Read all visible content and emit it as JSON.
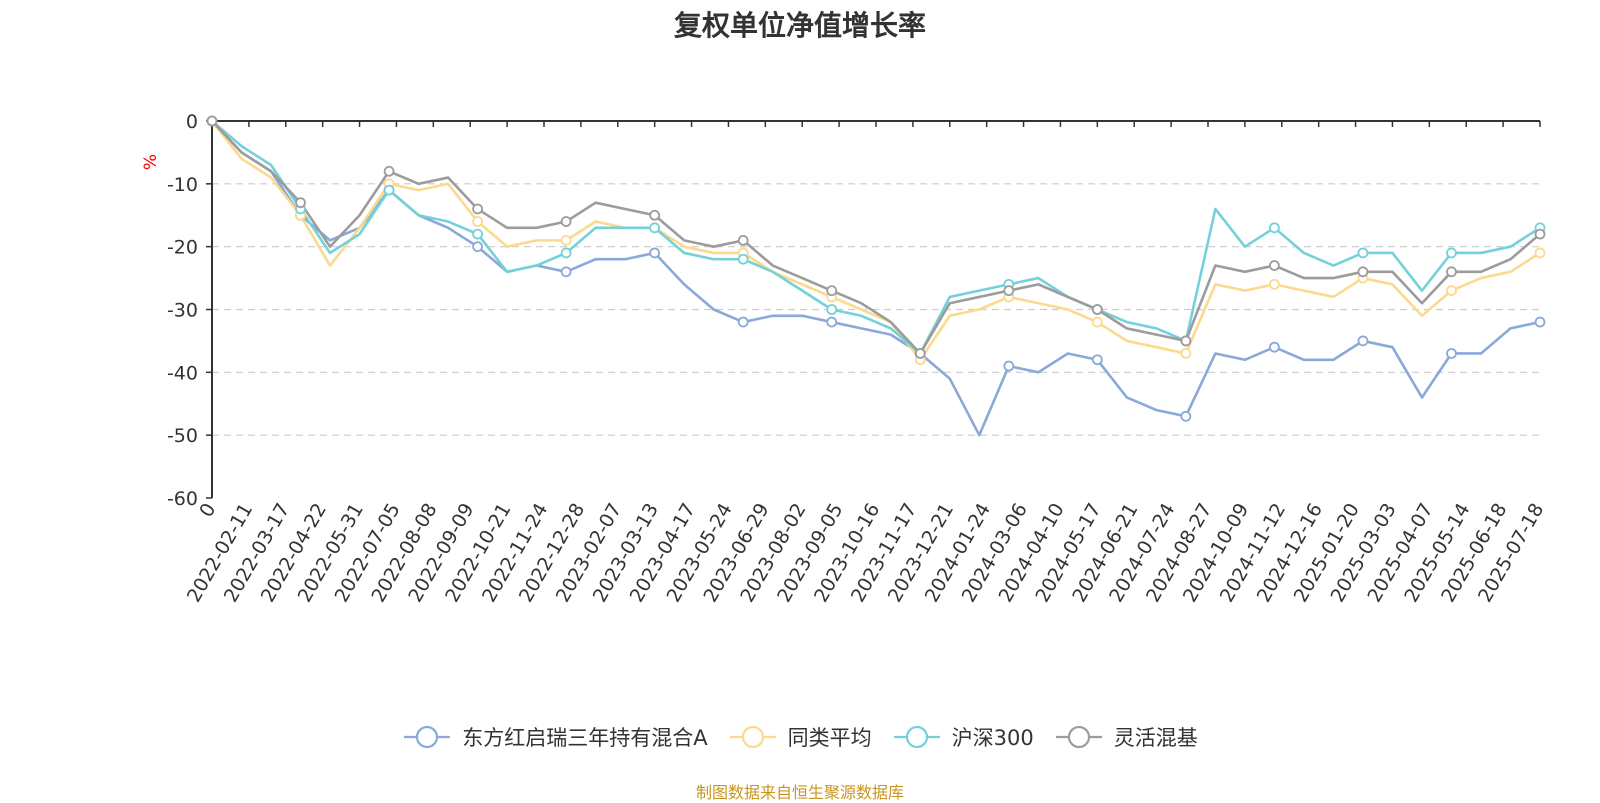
{
  "chart_data": {
    "type": "line",
    "title": "复权单位净值增长率",
    "ylabel": "%",
    "ylim": [
      -60,
      0
    ],
    "yticks": [
      "0",
      "-10",
      "-20",
      "-30",
      "-40",
      "-50",
      "-60"
    ],
    "x_tick_labels": [
      "0",
      "2022-02-11",
      "2022-03-17",
      "2022-04-22",
      "2022-05-31",
      "2022-07-05",
      "2022-08-08",
      "2022-09-09",
      "2022-10-21",
      "2022-11-24",
      "2022-12-28",
      "2023-02-07",
      "2023-03-13",
      "2023-04-17",
      "2023-05-24",
      "2023-06-29",
      "2023-08-02",
      "2023-09-05",
      "2023-10-16",
      "2023-11-17",
      "2023-12-21",
      "2024-01-24",
      "2024-03-06",
      "2024-04-10",
      "2024-05-17",
      "2024-06-21",
      "2024-07-24",
      "2024-08-27",
      "2024-10-09",
      "2024-11-12",
      "2024-12-16",
      "2025-01-20",
      "2025-03-03",
      "2025-04-07",
      "2025-05-14",
      "2025-06-18",
      "2025-07-18"
    ],
    "grid": "horizontal-dashed",
    "legend_position": "bottom",
    "series": [
      {
        "name": "东方红启瑞三年持有混合A",
        "color": "#8aa9d9",
        "values": [
          0,
          -5,
          -8,
          -15,
          -19,
          -17,
          -11,
          -15,
          -17,
          -20,
          -24,
          -23,
          -24,
          -22,
          -22,
          -21,
          -26,
          -30,
          -32,
          -31,
          -31,
          -32,
          -33,
          -34,
          -37,
          -41,
          -50,
          -39,
          -40,
          -37,
          -38,
          -44,
          -46,
          -47,
          -37,
          -38,
          -36,
          -38,
          -38,
          -35,
          -36,
          -44,
          -37,
          -37,
          -33,
          -32
        ]
      },
      {
        "name": "同类平均",
        "color": "#fcd98c",
        "values": [
          0,
          -6,
          -9,
          -15,
          -23,
          -17,
          -10,
          -11,
          -10,
          -16,
          -20,
          -19,
          -19,
          -16,
          -17,
          -17,
          -20,
          -21,
          -21,
          -24,
          -26,
          -28,
          -30,
          -32,
          -38,
          -31,
          -30,
          -28,
          -29,
          -30,
          -32,
          -35,
          -36,
          -37,
          -26,
          -27,
          -26,
          -27,
          -28,
          -25,
          -26,
          -31,
          -27,
          -25,
          -24,
          -21
        ]
      },
      {
        "name": "沪深300",
        "color": "#74d1d9",
        "values": [
          0,
          -4,
          -7,
          -14,
          -21,
          -18,
          -11,
          -15,
          -16,
          -18,
          -24,
          -23,
          -21,
          -17,
          -17,
          -17,
          -21,
          -22,
          -22,
          -24,
          -27,
          -30,
          -31,
          -33,
          -37,
          -28,
          -27,
          -26,
          -25,
          -28,
          -30,
          -32,
          -33,
          -35,
          -14,
          -20,
          -17,
          -21,
          -23,
          -21,
          -21,
          -27,
          -21,
          -21,
          -20,
          -17
        ]
      },
      {
        "name": "灵活混基",
        "color": "#9c9c9c",
        "values": [
          0,
          -5,
          -8,
          -13,
          -20,
          -15,
          -8,
          -10,
          -9,
          -14,
          -17,
          -17,
          -16,
          -13,
          -14,
          -15,
          -19,
          -20,
          -19,
          -23,
          -25,
          -27,
          -29,
          -32,
          -37,
          -29,
          -28,
          -27,
          -26,
          -28,
          -30,
          -33,
          -34,
          -35,
          -23,
          -24,
          -23,
          -25,
          -25,
          -24,
          -24,
          -29,
          -24,
          -24,
          -22,
          -18
        ]
      }
    ]
  },
  "footer": {
    "source": "制图数据来自恒生聚源数据库"
  }
}
